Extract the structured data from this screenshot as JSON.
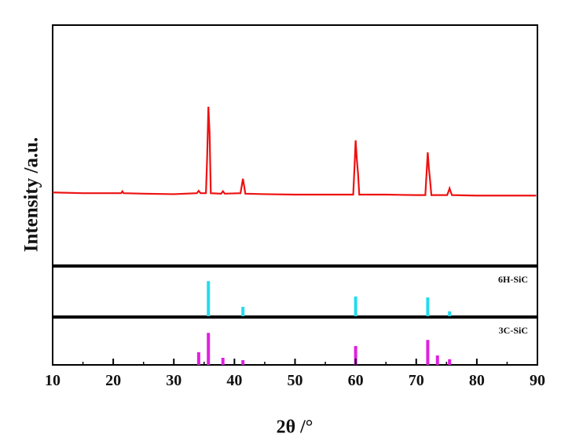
{
  "chart_data": [
    {
      "type": "line",
      "ylabel": "Intensity /a.u.",
      "xlim": [
        10,
        90
      ],
      "ylim": [
        0,
        100
      ],
      "series": [
        {
          "color": "#ee1111",
          "x": [
            10,
            15,
            20,
            21.3,
            21.5,
            21.7,
            25,
            30,
            33.8,
            34.1,
            34.4,
            35.3,
            35.5,
            35.7,
            35.9,
            36.1,
            37.8,
            38.1,
            38.4,
            41.0,
            41.2,
            41.4,
            41.6,
            41.8,
            45,
            50,
            55,
            59.6,
            59.8,
            60.0,
            60.2,
            60.4,
            60.6,
            65,
            70,
            71.5,
            71.7,
            71.9,
            72.1,
            72.3,
            72.5,
            75.1,
            75.3,
            75.5,
            75.7,
            75.9,
            80,
            85,
            89.8
          ],
          "values": [
            30.3,
            30,
            30,
            30,
            30.8,
            30,
            29.8,
            29.6,
            30,
            31,
            30,
            30,
            45,
            66,
            55,
            30,
            29.8,
            30.8,
            29.8,
            30,
            33,
            36,
            33,
            29.8,
            29.6,
            29.4,
            29.4,
            29.4,
            40,
            52,
            44,
            38,
            29.4,
            29.4,
            29.2,
            29.2,
            38,
            47,
            40,
            35,
            29.2,
            29.2,
            30.5,
            32,
            30.5,
            29.2,
            29,
            29,
            29
          ]
        }
      ]
    },
    {
      "type": "stick",
      "xlim": [
        10,
        90
      ],
      "ylim": [
        0,
        100
      ],
      "series": [
        {
          "name": "6H-SiC",
          "color": "#22dcee",
          "x": [
            35.7,
            41.4,
            60.0,
            71.9,
            75.5
          ],
          "values": [
            71,
            19,
            40,
            38,
            10
          ]
        }
      ]
    },
    {
      "type": "stick",
      "xlim": [
        10,
        90
      ],
      "ylim": [
        0,
        100
      ],
      "xlabel": "2θ /°",
      "xticks": [
        10,
        20,
        30,
        40,
        50,
        60,
        70,
        80,
        90
      ],
      "xminorticks": [
        15,
        25,
        35,
        45,
        55,
        65,
        75,
        85
      ],
      "series": [
        {
          "name": "3C-SiC",
          "color": "#e020e0",
          "x": [
            34.1,
            35.7,
            38.1,
            41.4,
            60.0,
            71.9,
            73.5,
            75.5
          ],
          "values": [
            27,
            68,
            15,
            10,
            40,
            53,
            20,
            12
          ]
        }
      ]
    }
  ]
}
